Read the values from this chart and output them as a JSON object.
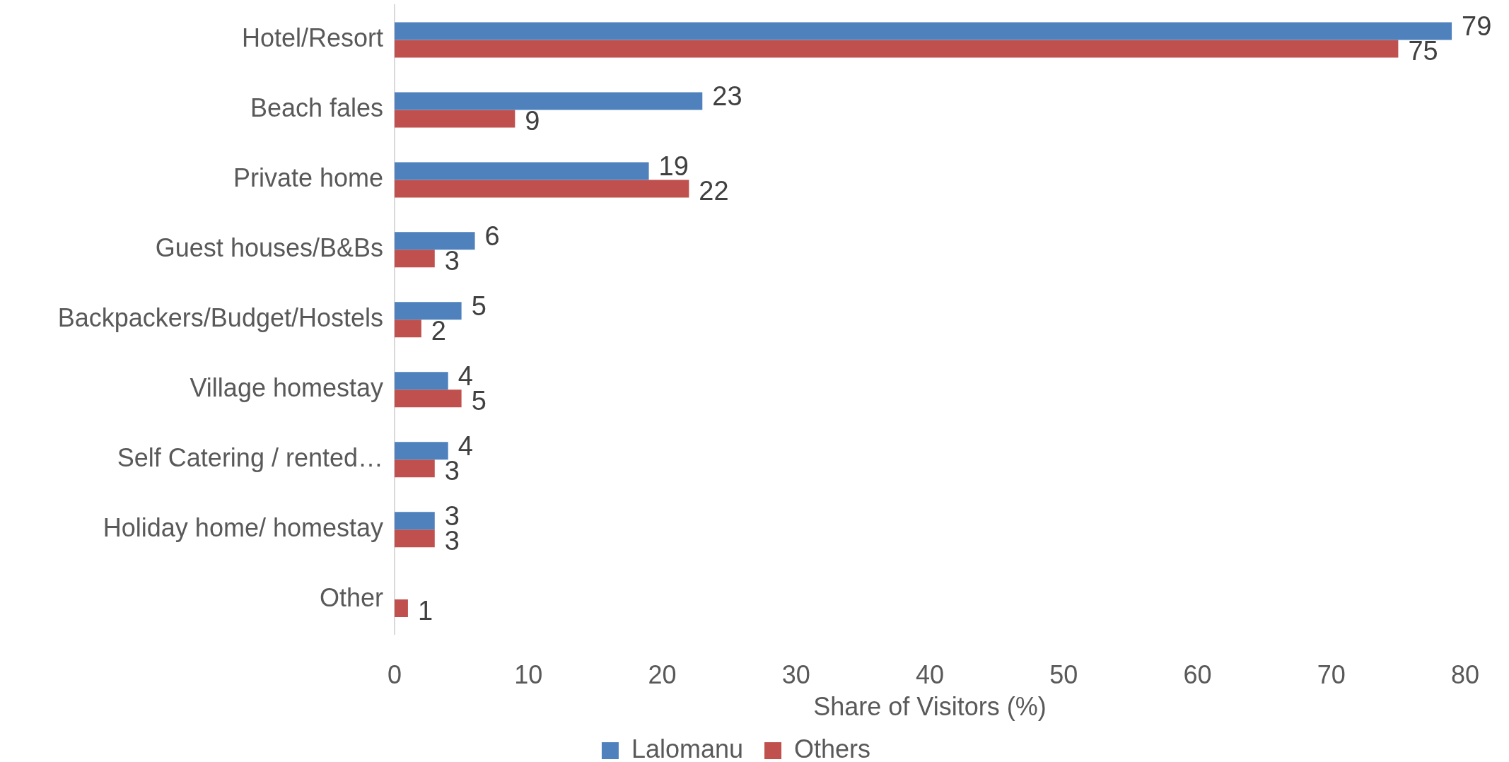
{
  "chart_data": {
    "type": "bar",
    "orientation": "horizontal",
    "categories": [
      "Hotel/Resort",
      "Beach fales",
      "Private home",
      "Guest houses/B&Bs",
      "Backpackers/Budget/Hostels",
      "Village homestay",
      "Self Catering / rented…",
      "Holiday home/ homestay",
      "Other"
    ],
    "series": [
      {
        "name": "Lalomanu",
        "color": "#4f81bd",
        "values": [
          79,
          23,
          19,
          6,
          5,
          4,
          4,
          3,
          null
        ]
      },
      {
        "name": "Others",
        "color": "#c0504d",
        "values": [
          75,
          9,
          22,
          3,
          2,
          5,
          3,
          3,
          1
        ]
      }
    ],
    "xlim": [
      0,
      80
    ],
    "xticks": [
      0,
      10,
      20,
      30,
      40,
      50,
      60,
      70,
      80
    ],
    "xlabel": "Share of Visitors (%)",
    "legend": "bottom",
    "data_labels": true
  }
}
